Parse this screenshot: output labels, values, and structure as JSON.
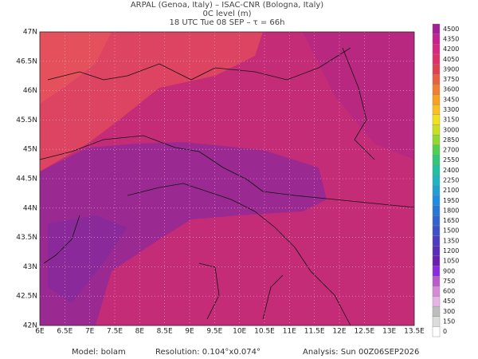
{
  "header": {
    "line1": "ARPAL (Genoa, Italy)  –  ISAC-CNR (Bologna, Italy)",
    "line2": "0C level (m)",
    "line3": "18 UTC Tue 08 SEP  –  τ = 66h"
  },
  "map": {
    "lon_labels": [
      "6E",
      "6.5E",
      "7E",
      "7.5E",
      "8E",
      "8.5E",
      "9E",
      "9.5E",
      "10E",
      "10.5E",
      "11E",
      "11.5E",
      "12E",
      "12.5E",
      "13E",
      "13.5E"
    ],
    "lat_labels": [
      "47N",
      "46.5N",
      "46N",
      "45.5N",
      "45N",
      "44.5N",
      "44N",
      "43.5N",
      "43N",
      "42.5N",
      "42N"
    ],
    "colorbar": {
      "levels": [
        0,
        150,
        300,
        450,
        600,
        750,
        900,
        1050,
        1200,
        1350,
        1500,
        1650,
        1800,
        1950,
        2100,
        2250,
        2400,
        2550,
        2700,
        2850,
        3000,
        3150,
        3300,
        3450,
        3600,
        3750,
        3900,
        4050,
        4200,
        4350,
        4500
      ],
      "colors": [
        "#ffffff",
        "#dcdcdc",
        "#bdbdbd",
        "#e6b3e6",
        "#d48ad4",
        "#b85cc8",
        "#8a2be2",
        "#6a1fb0",
        "#5a2db8",
        "#4b3cc0",
        "#3c50c8",
        "#3264d0",
        "#2878d8",
        "#1e8ce0",
        "#1ea0d0",
        "#20b4c0",
        "#20c0a0",
        "#30c878",
        "#50d050",
        "#90d830",
        "#c8e020",
        "#f0e020",
        "#f8c020",
        "#f8a020",
        "#f08030",
        "#e86040",
        "#e04050",
        "#e0306a",
        "#d82880",
        "#c82090",
        "#a02098"
      ]
    }
  },
  "footer": {
    "model": "Model: bolam",
    "resolution": "Resolution: 0.104°x0.074°",
    "analysis": "Analysis: Sun 00Z06SEP2026"
  }
}
